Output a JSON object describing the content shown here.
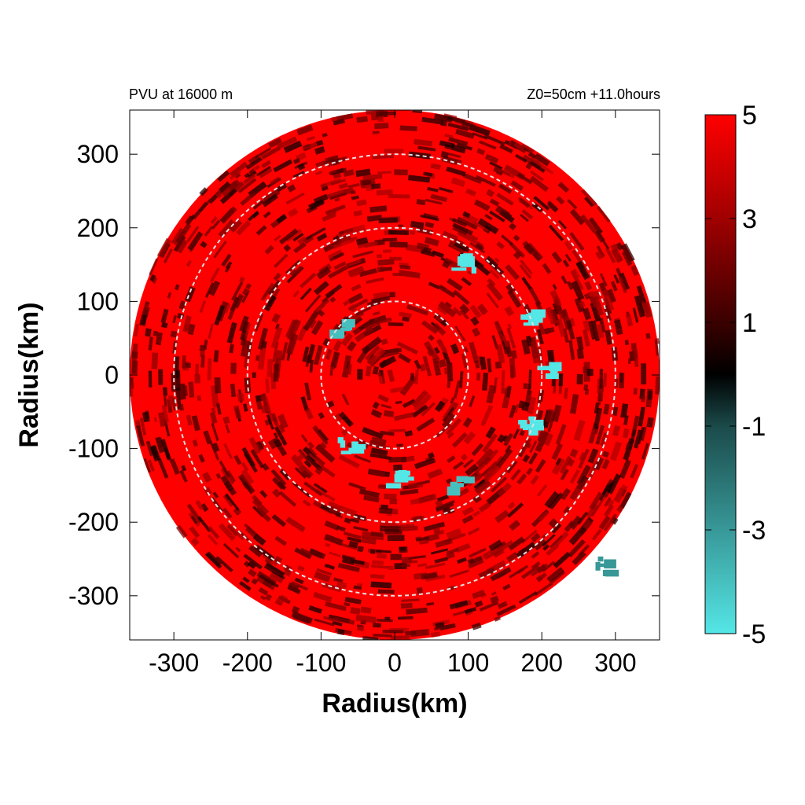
{
  "chart_data": {
    "type": "heatmap",
    "title_left": "PVU at 16000 m",
    "title_right": "Z0=50cm  +11.0hours",
    "xlabel": "Radius(km)",
    "ylabel": "Radius(km)",
    "xlim": [
      -360,
      360
    ],
    "ylim": [
      -360,
      360
    ],
    "x_ticks": [
      -300,
      -200,
      -100,
      0,
      100,
      200,
      300
    ],
    "y_ticks": [
      -300,
      -200,
      -100,
      0,
      100,
      200,
      300
    ],
    "x_tick_labels": [
      "-300",
      "-200",
      "-100",
      "0",
      "100",
      "200",
      "300"
    ],
    "y_tick_labels": [
      "-300",
      "-200",
      "-100",
      "0",
      "100",
      "200",
      "300"
    ],
    "domain_radius_km": 360,
    "range_rings_km": [
      100,
      200,
      300
    ],
    "range_ring_color": "#e0e0e0",
    "colorbar": {
      "min": -5,
      "max": 5,
      "ticks": [
        5,
        3,
        1,
        -1,
        -3,
        -5
      ],
      "tick_labels": [
        "5",
        "3",
        "1",
        "-1",
        "-3",
        "-5"
      ],
      "colors": [
        {
          "value": -5,
          "color": "#55e6e6"
        },
        {
          "value": -1,
          "color": "#1b4a4a"
        },
        {
          "value": 0,
          "color": "#000000"
        },
        {
          "value": 1,
          "color": "#3a0000"
        },
        {
          "value": 3,
          "color": "#a00000"
        },
        {
          "value": 5,
          "color": "#ff0000"
        }
      ]
    },
    "field_description_values": {
      "dominant_value": 5,
      "negative_patches": [
        {
          "x": 100,
          "y": 150,
          "value": -5
        },
        {
          "x": 190,
          "y": 80,
          "value": -5
        },
        {
          "x": 205,
          "y": 10,
          "value": -5
        },
        {
          "x": 185,
          "y": -70,
          "value": -5
        },
        {
          "x": 10,
          "y": -140,
          "value": -5
        },
        {
          "x": -60,
          "y": -100,
          "value": -5
        },
        {
          "x": 90,
          "y": -150,
          "value": -4
        },
        {
          "x": 290,
          "y": -260,
          "value": -3
        },
        {
          "x": -70,
          "y": 60,
          "value": -4
        }
      ]
    }
  }
}
